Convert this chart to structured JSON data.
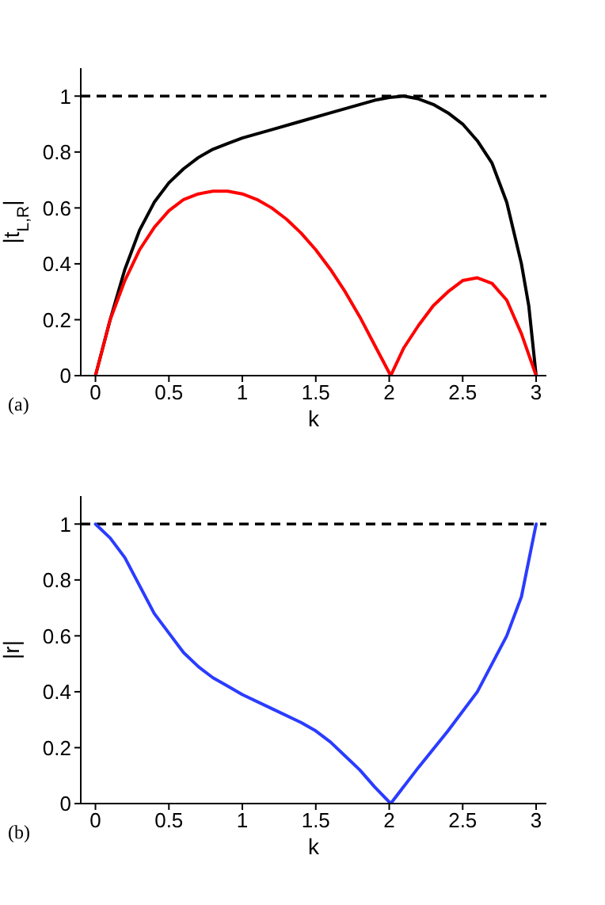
{
  "chart_data": [
    {
      "type": "line",
      "xlabel": "k",
      "ylabel": "|t$_{L,R}$|",
      "annotations": [
        "(a)"
      ],
      "xlim": [
        -0.1,
        3.07
      ],
      "xticks": [
        0,
        0.5,
        1,
        1.5,
        2,
        2.5,
        3
      ],
      "ylim": [
        0,
        1.1
      ],
      "yticks": [
        0,
        0.2,
        0.4,
        0.6,
        0.8,
        1
      ],
      "grid": false,
      "legend": false,
      "marker": "none",
      "line_style": "solid",
      "ref_lines": [
        {
          "axis": "y",
          "value": 1,
          "color": "#000000",
          "line_style": "dashed"
        }
      ],
      "series": [
        {
          "color": "#000000",
          "x": [
            0,
            0.1,
            0.2,
            0.3,
            0.4,
            0.5,
            0.6,
            0.7,
            0.8,
            0.9,
            1.0,
            1.2,
            1.4,
            1.6,
            1.8,
            1.9,
            2.0,
            2.1,
            2.2,
            2.3,
            2.4,
            2.5,
            2.6,
            2.7,
            2.8,
            2.9,
            2.95,
            3.0
          ],
          "values": [
            0,
            0.2,
            0.38,
            0.52,
            0.62,
            0.69,
            0.74,
            0.78,
            0.81,
            0.83,
            0.85,
            0.88,
            0.91,
            0.94,
            0.97,
            0.985,
            0.995,
            1.0,
            0.99,
            0.97,
            0.94,
            0.9,
            0.84,
            0.76,
            0.62,
            0.4,
            0.25,
            0
          ]
        },
        {
          "color": "#ff0000",
          "x": [
            0,
            0.05,
            0.1,
            0.2,
            0.3,
            0.4,
            0.5,
            0.6,
            0.7,
            0.8,
            0.9,
            1.0,
            1.1,
            1.2,
            1.3,
            1.4,
            1.5,
            1.6,
            1.7,
            1.8,
            1.9,
            2.01,
            2.1,
            2.2,
            2.3,
            2.4,
            2.5,
            2.6,
            2.7,
            2.8,
            2.9,
            3.0
          ],
          "values": [
            0,
            0.1,
            0.2,
            0.34,
            0.45,
            0.53,
            0.59,
            0.63,
            0.65,
            0.66,
            0.66,
            0.65,
            0.63,
            0.6,
            0.56,
            0.51,
            0.45,
            0.38,
            0.3,
            0.21,
            0.11,
            0,
            0.1,
            0.18,
            0.25,
            0.3,
            0.34,
            0.35,
            0.33,
            0.27,
            0.15,
            0
          ]
        }
      ]
    },
    {
      "type": "line",
      "xlabel": "k",
      "ylabel": "|r|",
      "annotations": [
        "(b)"
      ],
      "xlim": [
        -0.1,
        3.07
      ],
      "xticks": [
        0,
        0.5,
        1,
        1.5,
        2,
        2.5,
        3
      ],
      "ylim": [
        0,
        1.1
      ],
      "yticks": [
        0,
        0.2,
        0.4,
        0.6,
        0.8,
        1
      ],
      "grid": false,
      "legend": false,
      "marker": "none",
      "line_style": "solid",
      "ref_lines": [
        {
          "axis": "y",
          "value": 1,
          "color": "#000000",
          "line_style": "dashed"
        }
      ],
      "series": [
        {
          "color": "#2b3cff",
          "x": [
            0,
            0.1,
            0.2,
            0.3,
            0.4,
            0.5,
            0.6,
            0.7,
            0.8,
            0.9,
            1.0,
            1.2,
            1.4,
            1.5,
            1.6,
            1.7,
            1.8,
            1.9,
            2.01,
            2.2,
            2.4,
            2.6,
            2.8,
            2.9,
            3.0
          ],
          "values": [
            1,
            0.95,
            0.88,
            0.78,
            0.68,
            0.61,
            0.54,
            0.49,
            0.45,
            0.42,
            0.39,
            0.34,
            0.29,
            0.26,
            0.22,
            0.17,
            0.12,
            0.06,
            0,
            0.13,
            0.26,
            0.4,
            0.6,
            0.74,
            1.0
          ]
        }
      ]
    }
  ]
}
